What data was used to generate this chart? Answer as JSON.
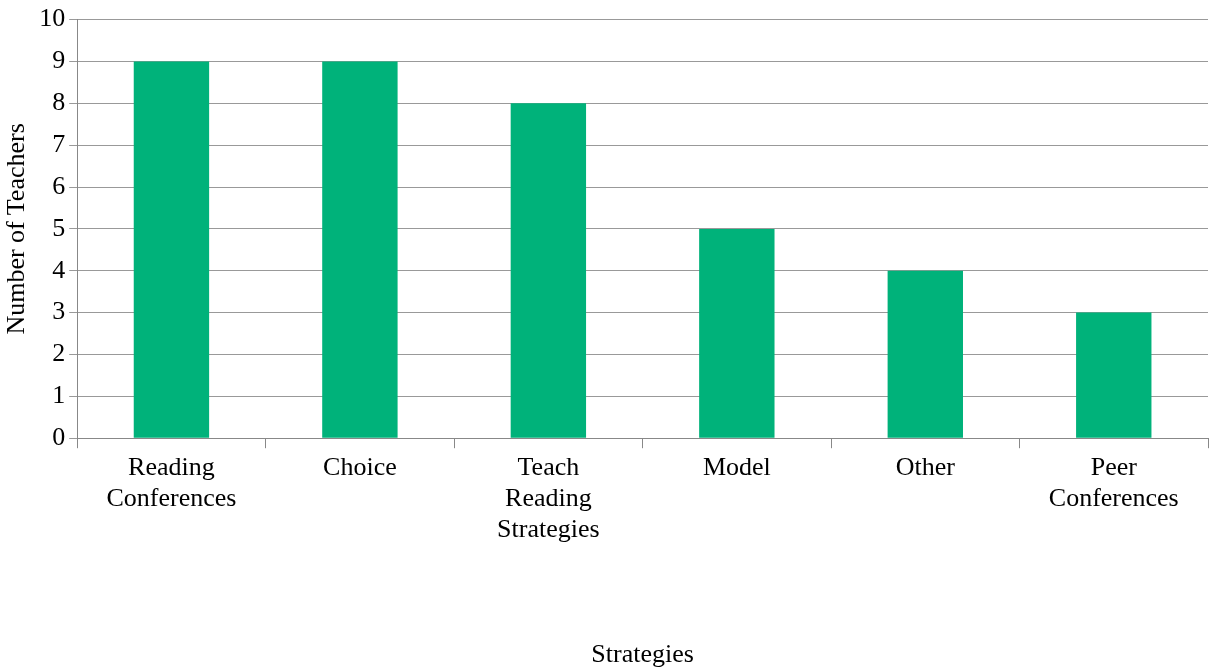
{
  "chart_data": {
    "type": "bar",
    "xlabel": "Strategies",
    "ylabel": "Number of Teachers",
    "categories": [
      "Reading Conferences",
      "Choice",
      "Teach Reading Strategies",
      "Model",
      "Other",
      "Peer Conferences"
    ],
    "values": [
      9,
      9,
      8,
      5,
      4,
      3
    ],
    "color": "#00b27a",
    "ylim": [
      0,
      10
    ],
    "yticks": [
      0,
      1,
      2,
      3,
      4,
      5,
      6,
      7,
      8,
      9,
      10
    ],
    "grid": "y"
  }
}
